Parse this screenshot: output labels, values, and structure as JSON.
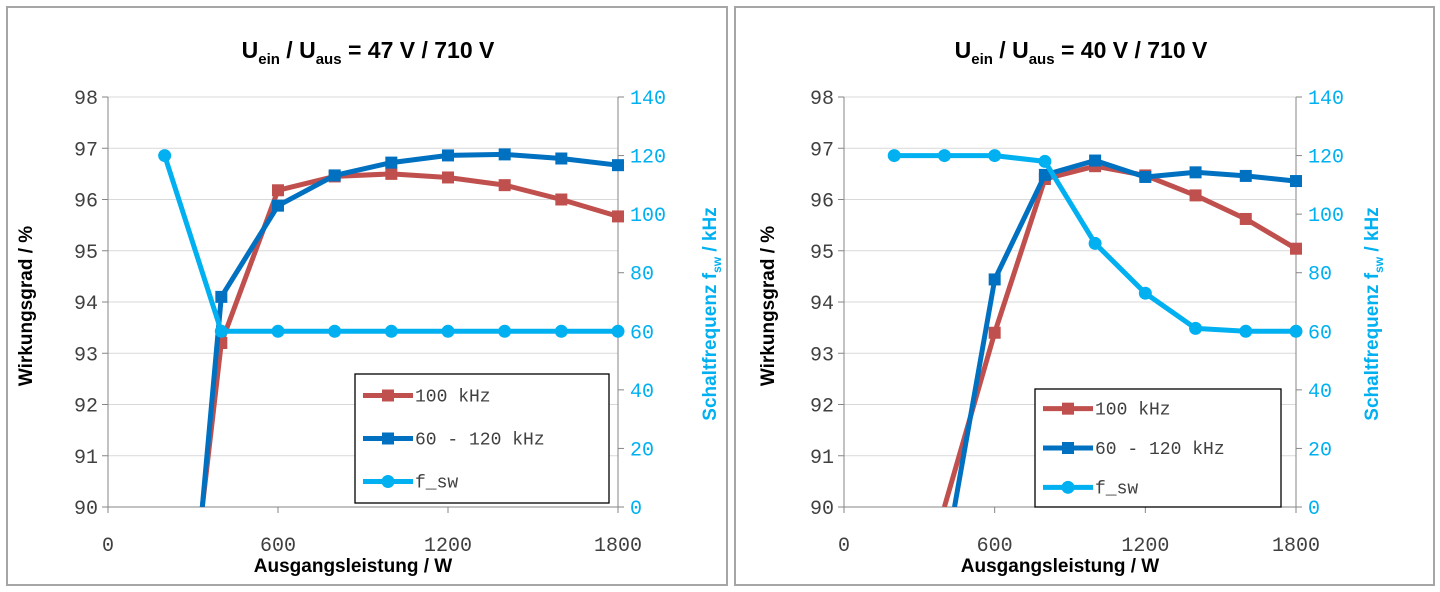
{
  "chart_data": [
    {
      "type": "line",
      "title_parts": [
        "U",
        "ein",
        " / U",
        "aus",
        " = 47 V / 710 V"
      ],
      "xlabel": "Ausgangsleistung / W",
      "ylabel": "Wirkungsgrad / %",
      "y2label_parts": [
        "Schaltfrequenz f",
        "sw",
        " / kHz"
      ],
      "xlim": [
        0,
        1800
      ],
      "xticks": [
        0,
        600,
        1200,
        1800
      ],
      "ylim": [
        90,
        98
      ],
      "yticks": [
        90,
        91,
        92,
        93,
        94,
        95,
        96,
        97,
        98
      ],
      "y2lim": [
        0,
        140
      ],
      "y2ticks": [
        0,
        20,
        40,
        60,
        80,
        100,
        120,
        140
      ],
      "legend_position": "bottom-right",
      "series": [
        {
          "name": "100 kHz",
          "axis": "left",
          "marker": "square",
          "color": "#c0504d",
          "points": [
            [
              333,
              90.0
            ],
            [
              400,
              93.2
            ],
            [
              600,
              96.18
            ],
            [
              800,
              96.45
            ],
            [
              1000,
              96.5
            ],
            [
              1200,
              96.43
            ],
            [
              1400,
              96.28
            ],
            [
              1600,
              96.0
            ],
            [
              1800,
              95.67
            ]
          ]
        },
        {
          "name": "60 - 120 kHz",
          "axis": "left",
          "marker": "square",
          "color": "#0070c0",
          "points": [
            [
              333,
              90.0
            ],
            [
              400,
              94.1
            ],
            [
              600,
              95.88
            ],
            [
              800,
              96.47
            ],
            [
              1000,
              96.72
            ],
            [
              1200,
              96.86
            ],
            [
              1400,
              96.88
            ],
            [
              1600,
              96.8
            ],
            [
              1800,
              96.67
            ]
          ]
        },
        {
          "name": "f_sw",
          "axis": "right",
          "marker": "circle",
          "color": "#00b0f0",
          "points": [
            [
              200,
              120
            ],
            [
              400,
              60
            ],
            [
              600,
              60
            ],
            [
              800,
              60
            ],
            [
              1000,
              60
            ],
            [
              1200,
              60
            ],
            [
              1400,
              60
            ],
            [
              1600,
              60
            ],
            [
              1800,
              60
            ]
          ]
        }
      ]
    },
    {
      "type": "line",
      "title_parts": [
        "U",
        "ein",
        " / U",
        "aus",
        " = 40 V / 710 V"
      ],
      "xlabel": "Ausgangsleistung / W",
      "ylabel": "Wirkungsgrad / %",
      "y2label_parts": [
        "Schaltfrequenz f",
        "sw",
        " / kHz"
      ],
      "xlim": [
        0,
        1800
      ],
      "xticks": [
        0,
        600,
        1200,
        1800
      ],
      "ylim": [
        90,
        98
      ],
      "yticks": [
        90,
        91,
        92,
        93,
        94,
        95,
        96,
        97,
        98
      ],
      "y2lim": [
        0,
        140
      ],
      "y2ticks": [
        0,
        20,
        40,
        60,
        80,
        100,
        120,
        140
      ],
      "legend_position": "bottom-right",
      "series": [
        {
          "name": "100 kHz",
          "axis": "left",
          "marker": "square",
          "color": "#c0504d",
          "points": [
            [
              400,
              90.0
            ],
            [
              600,
              93.4
            ],
            [
              800,
              96.4
            ],
            [
              1000,
              96.65
            ],
            [
              1200,
              96.47
            ],
            [
              1400,
              96.08
            ],
            [
              1600,
              95.62
            ],
            [
              1800,
              95.04
            ]
          ]
        },
        {
          "name": "60 - 120 kHz",
          "axis": "left",
          "marker": "square",
          "color": "#0070c0",
          "points": [
            [
              440,
              90.0
            ],
            [
              600,
              94.44
            ],
            [
              800,
              96.48
            ],
            [
              1000,
              96.76
            ],
            [
              1200,
              96.44
            ],
            [
              1400,
              96.53
            ],
            [
              1600,
              96.46
            ],
            [
              1800,
              96.36
            ]
          ]
        },
        {
          "name": "f_sw",
          "axis": "right",
          "marker": "circle",
          "color": "#00b0f0",
          "points": [
            [
              200,
              120
            ],
            [
              400,
              120
            ],
            [
              600,
              120
            ],
            [
              800,
              118
            ],
            [
              1000,
              90
            ],
            [
              1200,
              73
            ],
            [
              1400,
              61
            ],
            [
              1600,
              60
            ],
            [
              1800,
              60
            ]
          ]
        }
      ]
    }
  ],
  "colors": {
    "left_axis_text": "#404040",
    "right_axis_text": "#00b0f0",
    "grid": "#d9d9d9",
    "axis": "#868686",
    "panel_border": "#a6a6a6"
  }
}
